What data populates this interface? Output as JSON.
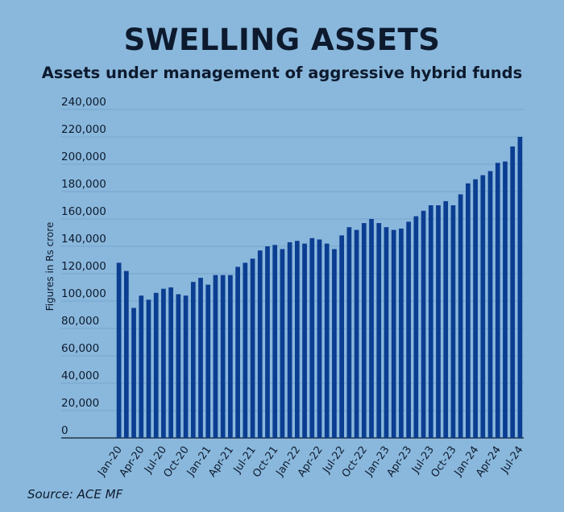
{
  "title": "SWELLING ASSETS",
  "subtitle": "Assets under management of aggressive hybrid funds",
  "source": "Source: ACE MF",
  "colors": {
    "background": "#8ab8dc",
    "bar": "#0b3d91",
    "grid": "#6e9fc8",
    "text": "#0d1a2e"
  },
  "chart_data": {
    "type": "bar",
    "title": "SWELLING ASSETS",
    "subtitle": "Assets under management of aggressive hybrid funds",
    "ylabel": "Figures in Rs crore",
    "xlabel": "",
    "ylim": [
      0,
      240000
    ],
    "yticks": [
      0,
      20000,
      40000,
      60000,
      80000,
      100000,
      120000,
      140000,
      160000,
      180000,
      200000,
      220000,
      240000
    ],
    "ytick_labels": [
      "0",
      "20,000",
      "40,000",
      "60,000",
      "80,000",
      "100,000",
      "120,000",
      "140,000",
      "160,000",
      "180,000",
      "200,000",
      "220,000",
      "240,000"
    ],
    "grid": true,
    "categories": [
      "Jan-20",
      "Feb-20",
      "Mar-20",
      "Apr-20",
      "May-20",
      "Jun-20",
      "Jul-20",
      "Aug-20",
      "Sep-20",
      "Oct-20",
      "Nov-20",
      "Dec-20",
      "Jan-21",
      "Feb-21",
      "Mar-21",
      "Apr-21",
      "May-21",
      "Jun-21",
      "Jul-21",
      "Aug-21",
      "Sep-21",
      "Oct-21",
      "Nov-21",
      "Dec-21",
      "Jan-22",
      "Feb-22",
      "Mar-22",
      "Apr-22",
      "May-22",
      "Jun-22",
      "Jul-22",
      "Aug-22",
      "Sep-22",
      "Oct-22",
      "Nov-22",
      "Dec-22",
      "Jan-23",
      "Feb-23",
      "Mar-23",
      "Apr-23",
      "May-23",
      "Jun-23",
      "Jul-23",
      "Aug-23",
      "Sep-23",
      "Oct-23",
      "Nov-23",
      "Dec-23",
      "Jan-24",
      "Feb-24",
      "Mar-24",
      "Apr-24",
      "May-24",
      "Jun-24",
      "Jul-24"
    ],
    "tick_labels": [
      "Jan-20",
      "Apr-20",
      "Jul-20",
      "Oct-20",
      "Jan-21",
      "Apr-21",
      "Jul-21",
      "Oct-21",
      "Jan-22",
      "Apr-22",
      "Jul-22",
      "Oct-22",
      "Jan-23",
      "Apr-23",
      "Jul-23",
      "Oct-23",
      "Jan-24",
      "Apr-24",
      "Jul-24"
    ],
    "values": [
      128000,
      122000,
      95000,
      104000,
      101000,
      106000,
      109000,
      110000,
      105000,
      104000,
      114000,
      117000,
      112000,
      119000,
      119000,
      119000,
      125000,
      128000,
      131000,
      137000,
      140000,
      141000,
      138000,
      143000,
      144000,
      142000,
      146000,
      145000,
      142000,
      138000,
      148000,
      154000,
      152000,
      157000,
      160000,
      157000,
      154000,
      152000,
      153000,
      158000,
      162000,
      166000,
      170000,
      170000,
      173000,
      170000,
      178000,
      186000,
      189000,
      192000,
      195000,
      201000,
      202000,
      213000,
      220000
    ]
  }
}
